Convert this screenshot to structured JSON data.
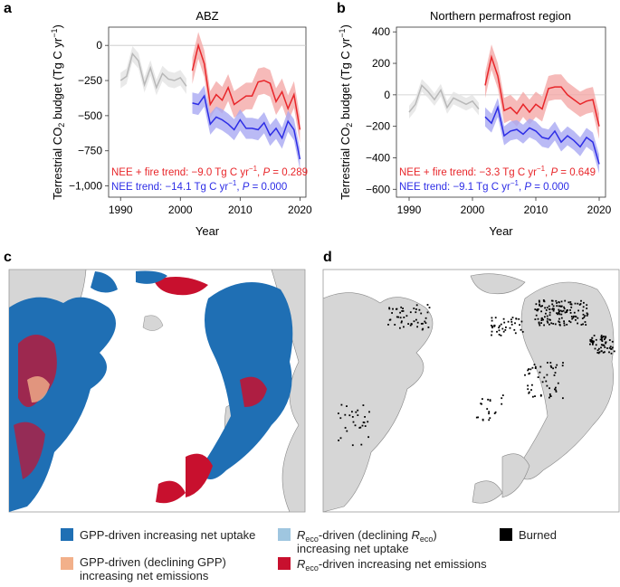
{
  "colors": {
    "fire": "#e8262a",
    "fire_band": "#f4a9a8",
    "nee": "#2d2de6",
    "nee_band": "#a9a9f2",
    "hist": "#b8b8b8",
    "hist_band": "#e3e3e3",
    "gpp_uptake": "#1f6fb4",
    "reco_uptake": "#9fc6e0",
    "gpp_emit": "#f2b08a",
    "reco_emit": "#c8102e",
    "burned": "#000000",
    "land": "#d6d6d6",
    "ocean": "#ffffff"
  },
  "chart_data": [
    {
      "panel": "a",
      "type": "line",
      "title": "ABZ",
      "ylabel": "Terrestrial CO2 budget (Tg C yr-1)",
      "ylabel_parts": {
        "pre": "Terrestrial CO",
        "sub": "2",
        "mid": " budget (Tg C yr",
        "sup": "−1",
        "post": ")"
      },
      "xlabel": "Year",
      "xlim": [
        1988,
        2021
      ],
      "ylim": [
        -1080,
        130
      ],
      "xticks": [
        1990,
        2000,
        2010,
        2020
      ],
      "yticks": [
        0,
        -250,
        -500,
        -750,
        -1000
      ],
      "ytick_labels": [
        "0",
        "−250",
        "−500",
        "−750",
        "−1,000"
      ],
      "series": [
        {
          "name": "historical",
          "color_key": "hist",
          "x": [
            1990,
            1991,
            1992,
            1993,
            1994,
            1995,
            1996,
            1997,
            1998,
            1999,
            2000,
            2001
          ],
          "values": [
            -250,
            -220,
            -60,
            -110,
            -280,
            -160,
            -300,
            -200,
            -240,
            -250,
            -230,
            -290
          ],
          "band": 55
        },
        {
          "name": "NEE + fire",
          "color_key": "fire",
          "x": [
            2002,
            2003,
            2004,
            2005,
            2006,
            2007,
            2008,
            2009,
            2010,
            2011,
            2012,
            2013,
            2014,
            2015,
            2016,
            2017,
            2018,
            2019,
            2020
          ],
          "values": [
            -180,
            0,
            -130,
            -420,
            -350,
            -390,
            -300,
            -420,
            -390,
            -360,
            -360,
            -260,
            -250,
            -270,
            -400,
            -330,
            -450,
            -350,
            -600
          ],
          "band": 95
        },
        {
          "name": "NEE",
          "color_key": "nee",
          "x": [
            2002,
            2003,
            2004,
            2005,
            2006,
            2007,
            2008,
            2009,
            2010,
            2011,
            2012,
            2013,
            2014,
            2015,
            2016,
            2017,
            2018,
            2019,
            2020
          ],
          "values": [
            -410,
            -420,
            -360,
            -560,
            -510,
            -530,
            -560,
            -600,
            -530,
            -590,
            -590,
            -600,
            -550,
            -640,
            -590,
            -660,
            -540,
            -600,
            -810
          ],
          "band": 75
        }
      ],
      "annotations": [
        {
          "color_key": "fire",
          "pre": "NEE + fire trend: −9.0 Tg C yr",
          "sup": "−1",
          "mid": ", ",
          "ital": "P",
          "post": " = 0.289"
        },
        {
          "color_key": "nee",
          "pre": "NEE trend: −14.1 Tg C yr",
          "sup": "−1",
          "mid": ", ",
          "ital": "P",
          "post": " = 0.000"
        }
      ]
    },
    {
      "panel": "b",
      "type": "line",
      "title": "Northern permafrost region",
      "ylabel": "Terrestrial CO2 budget (Tg C yr-1)",
      "ylabel_parts": {
        "pre": "Terrestrial CO",
        "sub": "2",
        "mid": " budget (Tg C yr",
        "sup": "−1",
        "post": ")"
      },
      "xlabel": "Year",
      "xlim": [
        1988,
        2021
      ],
      "ylim": [
        -650,
        430
      ],
      "xticks": [
        1990,
        2000,
        2010,
        2020
      ],
      "yticks": [
        400,
        200,
        0,
        -200,
        -400,
        -600
      ],
      "ytick_labels": [
        "400",
        "200",
        "0",
        "−200",
        "−400",
        "−600"
      ],
      "series": [
        {
          "name": "historical",
          "color_key": "hist",
          "x": [
            1990,
            1991,
            1992,
            1993,
            1994,
            1995,
            1996,
            1997,
            1998,
            1999,
            2000,
            2001
          ],
          "values": [
            -110,
            -60,
            60,
            20,
            -30,
            30,
            -80,
            -20,
            -40,
            -60,
            -40,
            -90
          ],
          "band": 40
        },
        {
          "name": "NEE + fire",
          "color_key": "fire",
          "x": [
            2002,
            2003,
            2004,
            2005,
            2006,
            2007,
            2008,
            2009,
            2010,
            2011,
            2012,
            2013,
            2014,
            2015,
            2016,
            2017,
            2018,
            2019,
            2020
          ],
          "values": [
            60,
            240,
            120,
            -100,
            -80,
            -120,
            -60,
            -110,
            -60,
            -90,
            40,
            50,
            50,
            0,
            -30,
            -60,
            -40,
            -30,
            -200
          ],
          "band": 80
        },
        {
          "name": "NEE",
          "color_key": "nee",
          "x": [
            2002,
            2003,
            2004,
            2005,
            2006,
            2007,
            2008,
            2009,
            2010,
            2011,
            2012,
            2013,
            2014,
            2015,
            2016,
            2017,
            2018,
            2019,
            2020
          ],
          "values": [
            -140,
            -180,
            -80,
            -260,
            -230,
            -220,
            -250,
            -210,
            -230,
            -270,
            -280,
            -230,
            -300,
            -260,
            -290,
            -330,
            -270,
            -300,
            -440
          ],
          "band": 60
        }
      ],
      "annotations": [
        {
          "color_key": "fire",
          "pre": "NEE + fire trend: −3.3 Tg C yr",
          "sup": "−1",
          "mid": ", ",
          "ital": "P",
          "post": " = 0.649"
        },
        {
          "color_key": "nee",
          "pre": "NEE trend: −9.1 Tg C yr",
          "sup": "−1",
          "mid": ", ",
          "ital": "P",
          "post": " = 0.000"
        }
      ]
    }
  ],
  "maps": [
    {
      "panel": "c",
      "description_key": "driver-classification"
    },
    {
      "panel": "d",
      "description_key": "burned-area"
    }
  ],
  "legend": [
    {
      "color_key": "gpp_uptake",
      "line1": "GPP-driven increasing net uptake"
    },
    {
      "color_key": "reco_uptake",
      "line1_parts": {
        "pre": "",
        "ital": "R",
        "sub": "eco",
        "post": "-driven (declining "
      },
      "line1_tail": {
        "ital": "R",
        "sub": "eco",
        "post": ")"
      },
      "line2": "increasing net uptake"
    },
    {
      "color_key": "burned",
      "line1": "Burned"
    },
    {
      "color_key": "gpp_emit",
      "line1": "GPP-driven (declining GPP)",
      "line2": "increasing net emissions"
    },
    {
      "color_key": "reco_emit",
      "line1_parts": {
        "pre": "",
        "ital": "R",
        "sub": "eco",
        "post": "-driven increasing net emissions"
      }
    }
  ]
}
